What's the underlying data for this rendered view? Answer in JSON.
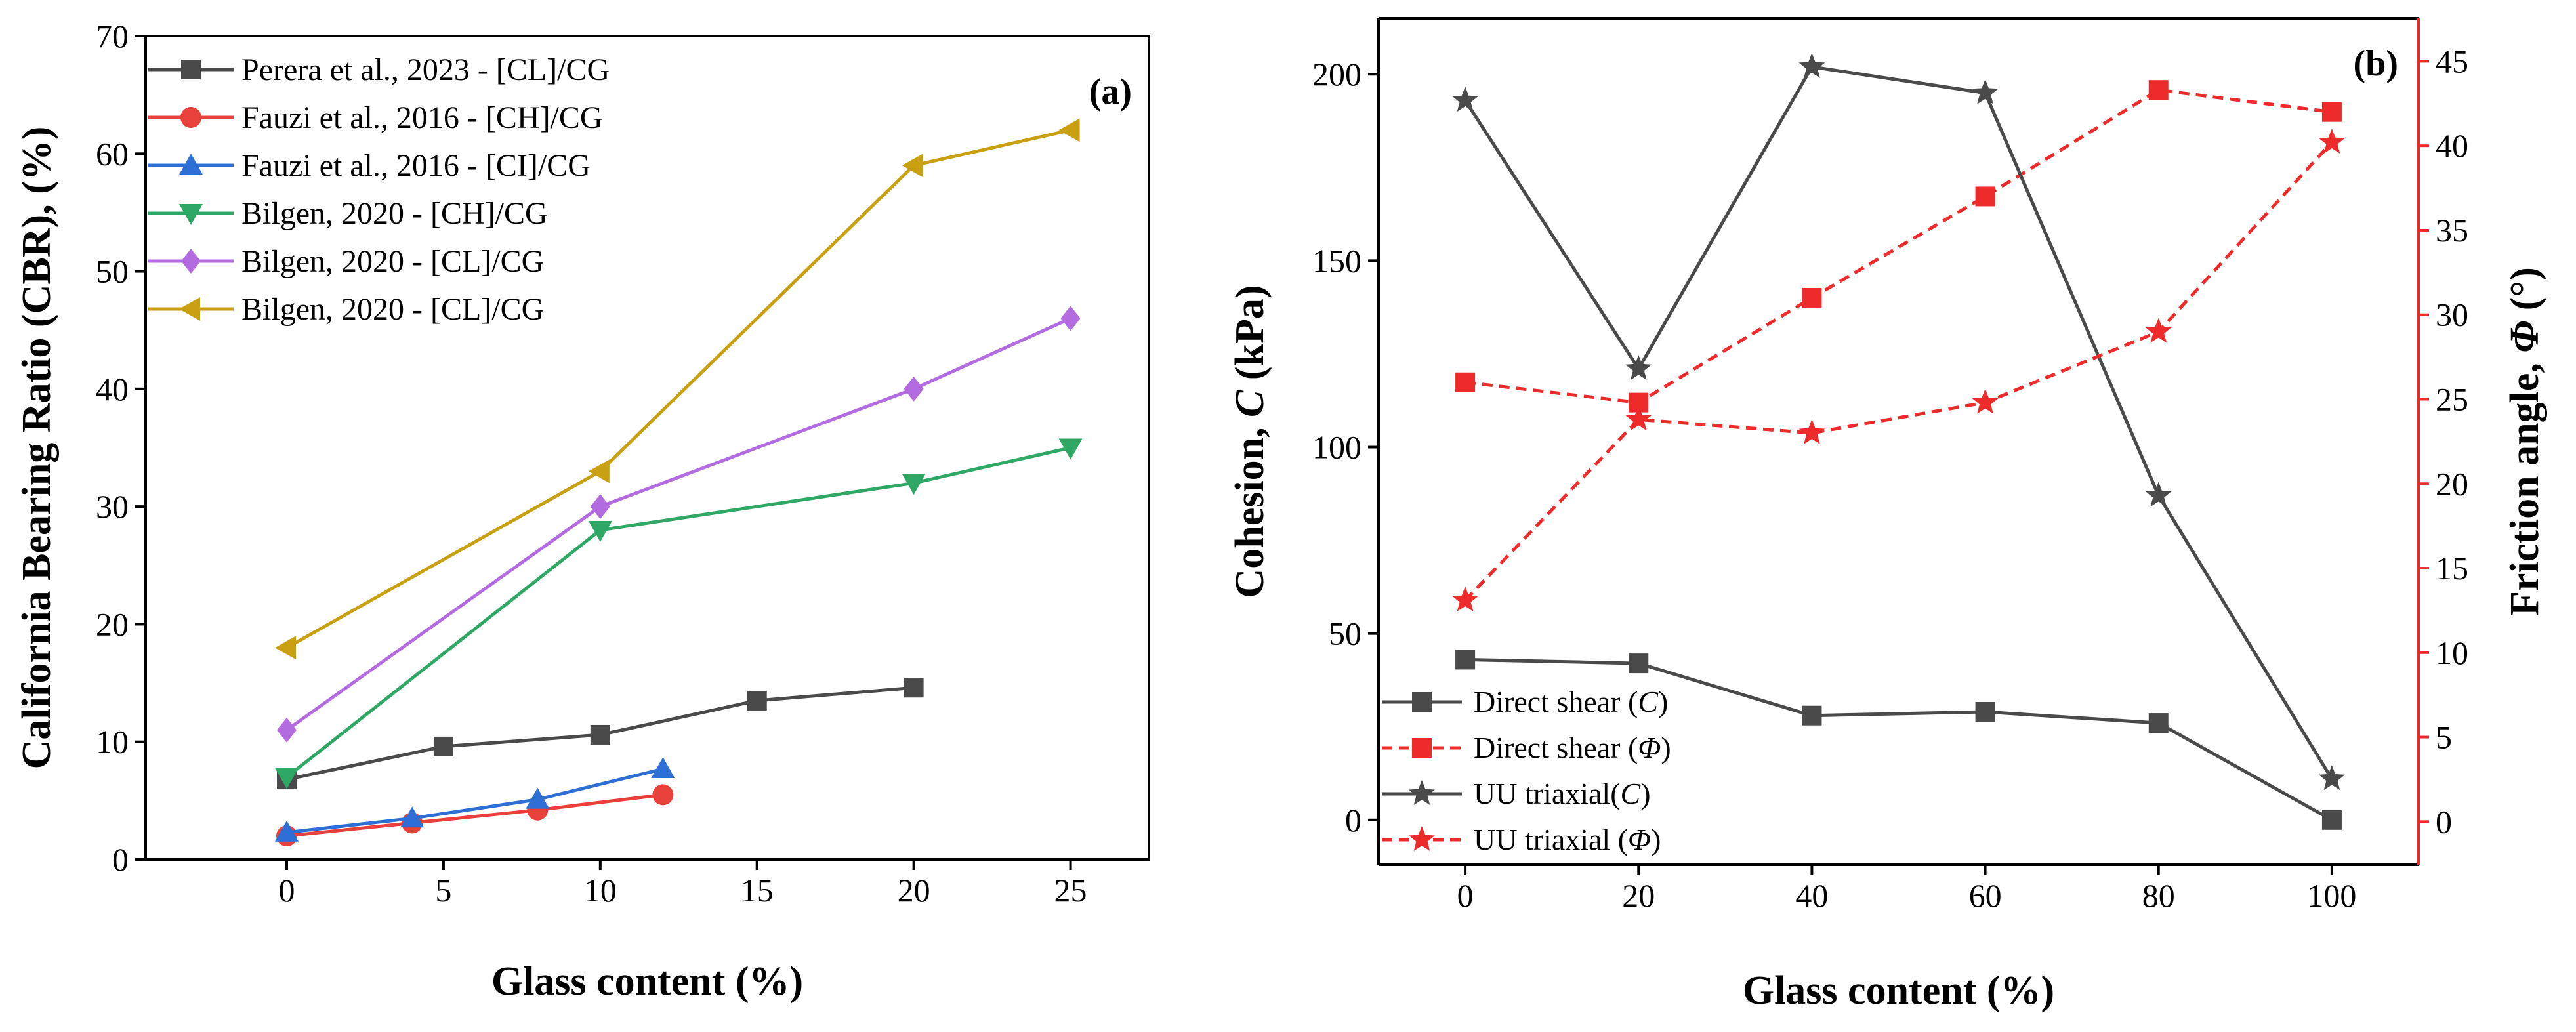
{
  "chart_data": [
    {
      "type": "line",
      "panel_label": "(a)",
      "xlabel": "Glass content (%)",
      "ylabel": "California Bearing Ratio (CBR), (%)",
      "xlim": [
        -4.5,
        27.5
      ],
      "ylim": [
        0,
        70
      ],
      "xticks": [
        0,
        5,
        10,
        15,
        20,
        25
      ],
      "yticks": [
        0,
        10,
        20,
        30,
        40,
        50,
        60,
        70
      ],
      "legend_position": "top-left",
      "series": [
        {
          "name": "Perera et al., 2023 - [CL]/CG",
          "color": "#4a4a4a",
          "marker": "square",
          "x": [
            0,
            5,
            10,
            15,
            20
          ],
          "y": [
            6.8,
            9.6,
            10.6,
            13.5,
            14.6
          ]
        },
        {
          "name": "Fauzi et al., 2016 - [CH]/CG",
          "color": "#e8403a",
          "marker": "circle",
          "x": [
            0,
            4,
            8,
            12
          ],
          "y": [
            2.0,
            3.1,
            4.2,
            5.5
          ]
        },
        {
          "name": "Fauzi et al., 2016 - [CI]/CG",
          "color": "#2e6fd6",
          "marker": "triangle-up",
          "x": [
            0,
            4,
            8,
            12
          ],
          "y": [
            2.3,
            3.5,
            5.1,
            7.7
          ]
        },
        {
          "name": "Bilgen, 2020 - [CH]/CG",
          "color": "#2fa866",
          "marker": "triangle-down",
          "x": [
            0,
            10,
            20,
            25
          ],
          "y": [
            7.0,
            28.0,
            32.0,
            35.0
          ]
        },
        {
          "name": "Bilgen, 2020 - [CL]/CG",
          "color": "#b36be0",
          "marker": "diamond",
          "x": [
            0,
            10,
            20,
            25
          ],
          "y": [
            11.0,
            30.0,
            40.0,
            46.0
          ]
        },
        {
          "name": "Bilgen, 2020 - [CL]/CG",
          "color": "#c9a012",
          "marker": "triangle-left",
          "x": [
            0,
            10,
            20,
            25
          ],
          "y": [
            18.0,
            33.0,
            59.0,
            62.0
          ]
        }
      ]
    },
    {
      "type": "line",
      "panel_label": "(b)",
      "xlabel": "Glass content (%)",
      "ylabel_left_prefix": "Cohesion, ",
      "ylabel_left_var": "C",
      "ylabel_left_suffix": " (kPa)",
      "ylabel_right_prefix": "Friction angle, ",
      "ylabel_right_var": "Φ",
      "ylabel_right_suffix": " (°)",
      "xlim": [
        -10,
        110
      ],
      "ylim_left": [
        -12,
        215
      ],
      "ylim_right": [
        -2.55,
        47.54
      ],
      "xticks": [
        0,
        20,
        40,
        60,
        80,
        100
      ],
      "yticks_left": [
        0,
        50,
        100,
        150,
        200
      ],
      "yticks_right": [
        0,
        5,
        10,
        15,
        20,
        25,
        30,
        35,
        40,
        45
      ],
      "legend_position": "bottom-left",
      "series": [
        {
          "name": "Direct shear (C)",
          "label_text": "Direct shear (",
          "label_var": "C",
          "label_end": ")",
          "axis": "left",
          "color": "#4a4a4a",
          "dash": false,
          "marker": "square",
          "x": [
            0,
            20,
            40,
            60,
            80,
            100
          ],
          "y": [
            43,
            42,
            28,
            29,
            26,
            0
          ]
        },
        {
          "name": "Direct shear (Φ)",
          "label_text": "Direct shear (",
          "label_var": "Φ",
          "label_end": ")",
          "axis": "right",
          "color": "#ee2b2b",
          "dash": true,
          "marker": "square",
          "x": [
            0,
            20,
            40,
            60,
            80,
            100
          ],
          "y": [
            26,
            24.8,
            31,
            37,
            43.3,
            42
          ]
        },
        {
          "name": "UU triaxial(C)",
          "label_text": "UU triaxial(",
          "label_var": "C",
          "label_end": ")",
          "axis": "left",
          "color": "#4a4a4a",
          "dash": false,
          "marker": "star",
          "x": [
            0,
            20,
            40,
            60,
            80,
            100
          ],
          "y": [
            193,
            121,
            202,
            195,
            87,
            11
          ]
        },
        {
          "name": "UU triaxial (Φ)",
          "label_text": "UU triaxial (",
          "label_var": "Φ",
          "label_end": ")",
          "axis": "right",
          "color": "#ee2b2b",
          "dash": true,
          "marker": "star",
          "x": [
            0,
            20,
            40,
            60,
            80,
            100
          ],
          "y": [
            13.1,
            23.8,
            23,
            24.8,
            29,
            40.2
          ]
        }
      ]
    }
  ]
}
